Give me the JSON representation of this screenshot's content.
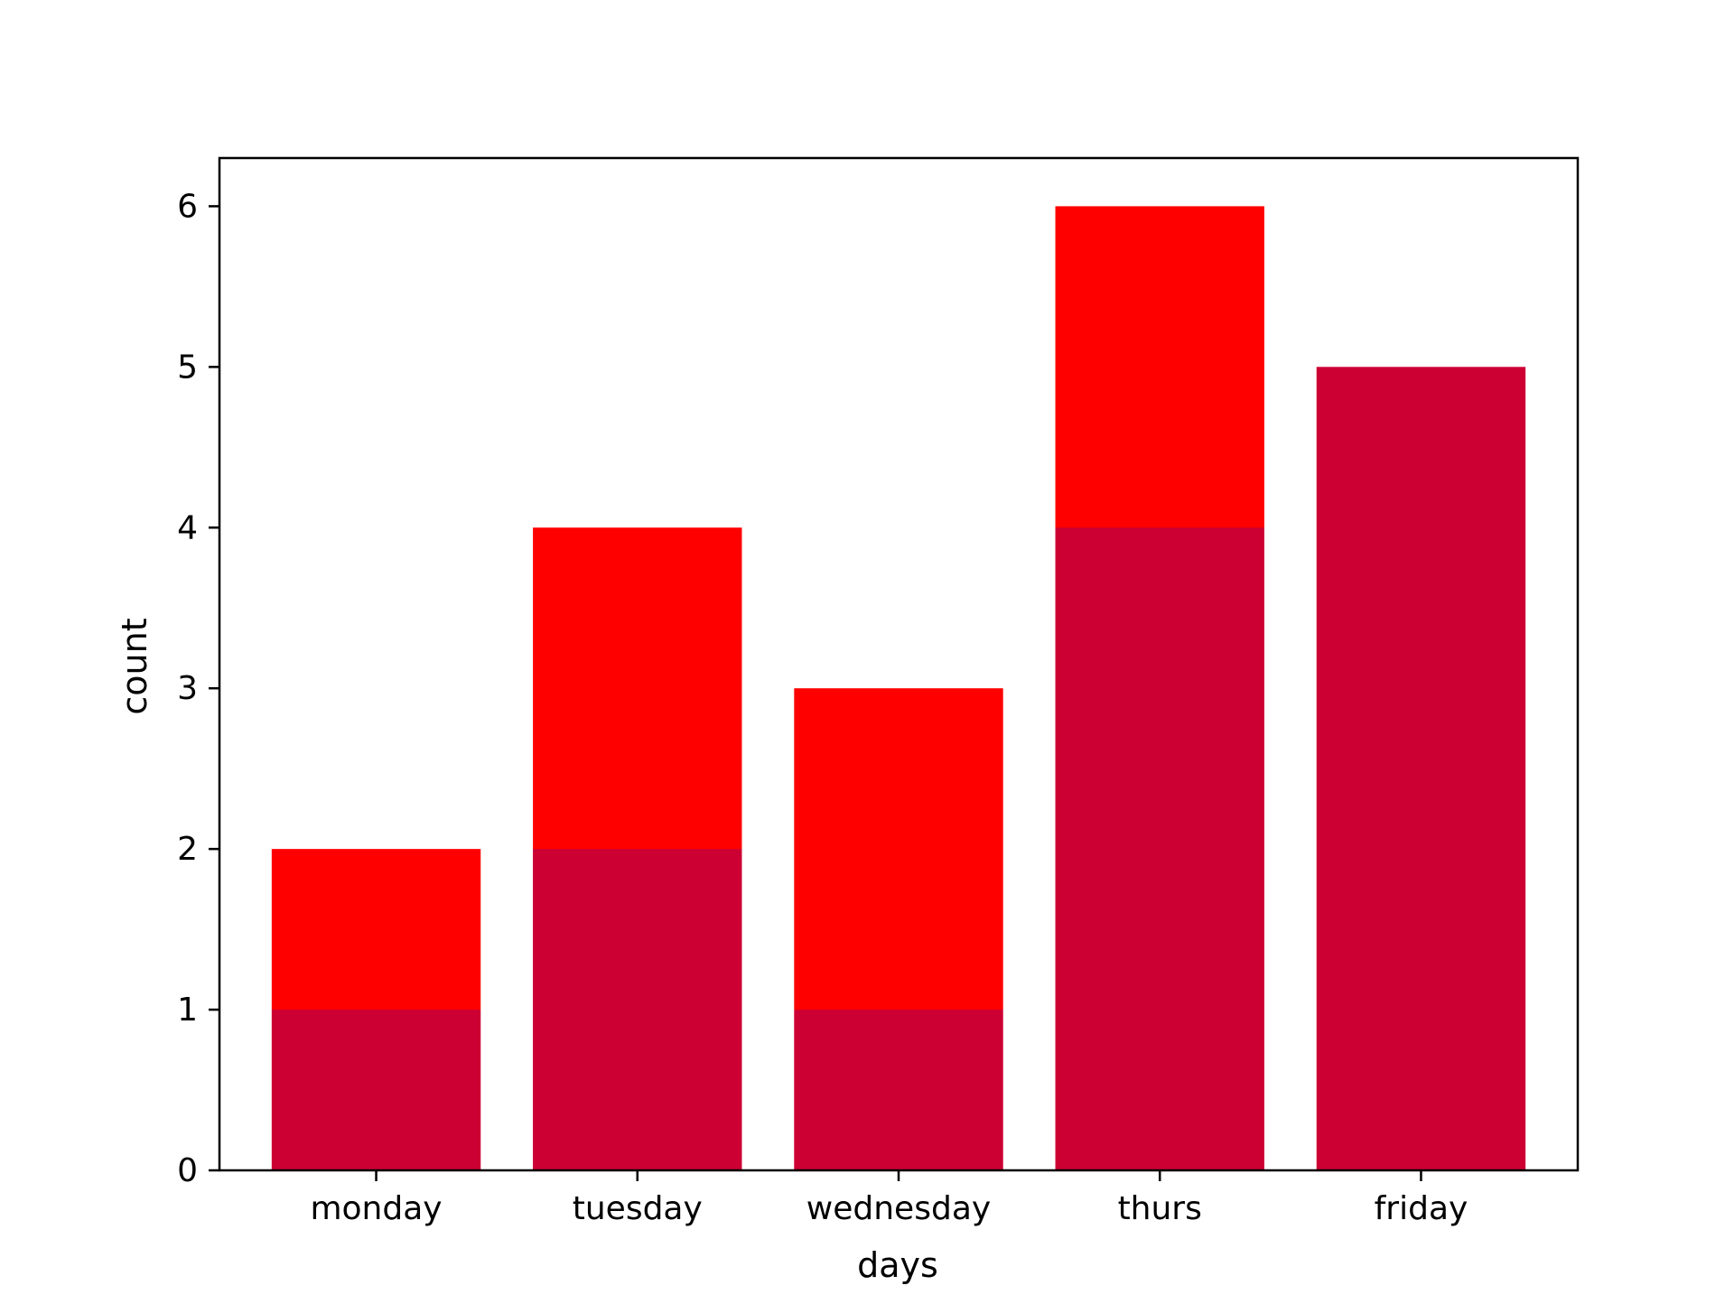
{
  "chart_data": {
    "type": "bar",
    "title": "",
    "xlabel": "days",
    "ylabel": "count",
    "categories": [
      "monday",
      "tuesday",
      "wednesday",
      "thurs",
      "friday"
    ],
    "ylim": [
      0,
      6.3
    ],
    "yticks": [
      0,
      1,
      2,
      3,
      4,
      5,
      6
    ],
    "grid": false,
    "legend": "none",
    "overlay": true,
    "series": [
      {
        "values": [
          2,
          4,
          3,
          6,
          5
        ],
        "color": "#ff0000",
        "opacity": 1.0
      },
      {
        "values": [
          1,
          2,
          1,
          4,
          5
        ],
        "color": "#0000ff",
        "opacity": 0.2
      }
    ],
    "overlap_color": "#cc0033"
  }
}
